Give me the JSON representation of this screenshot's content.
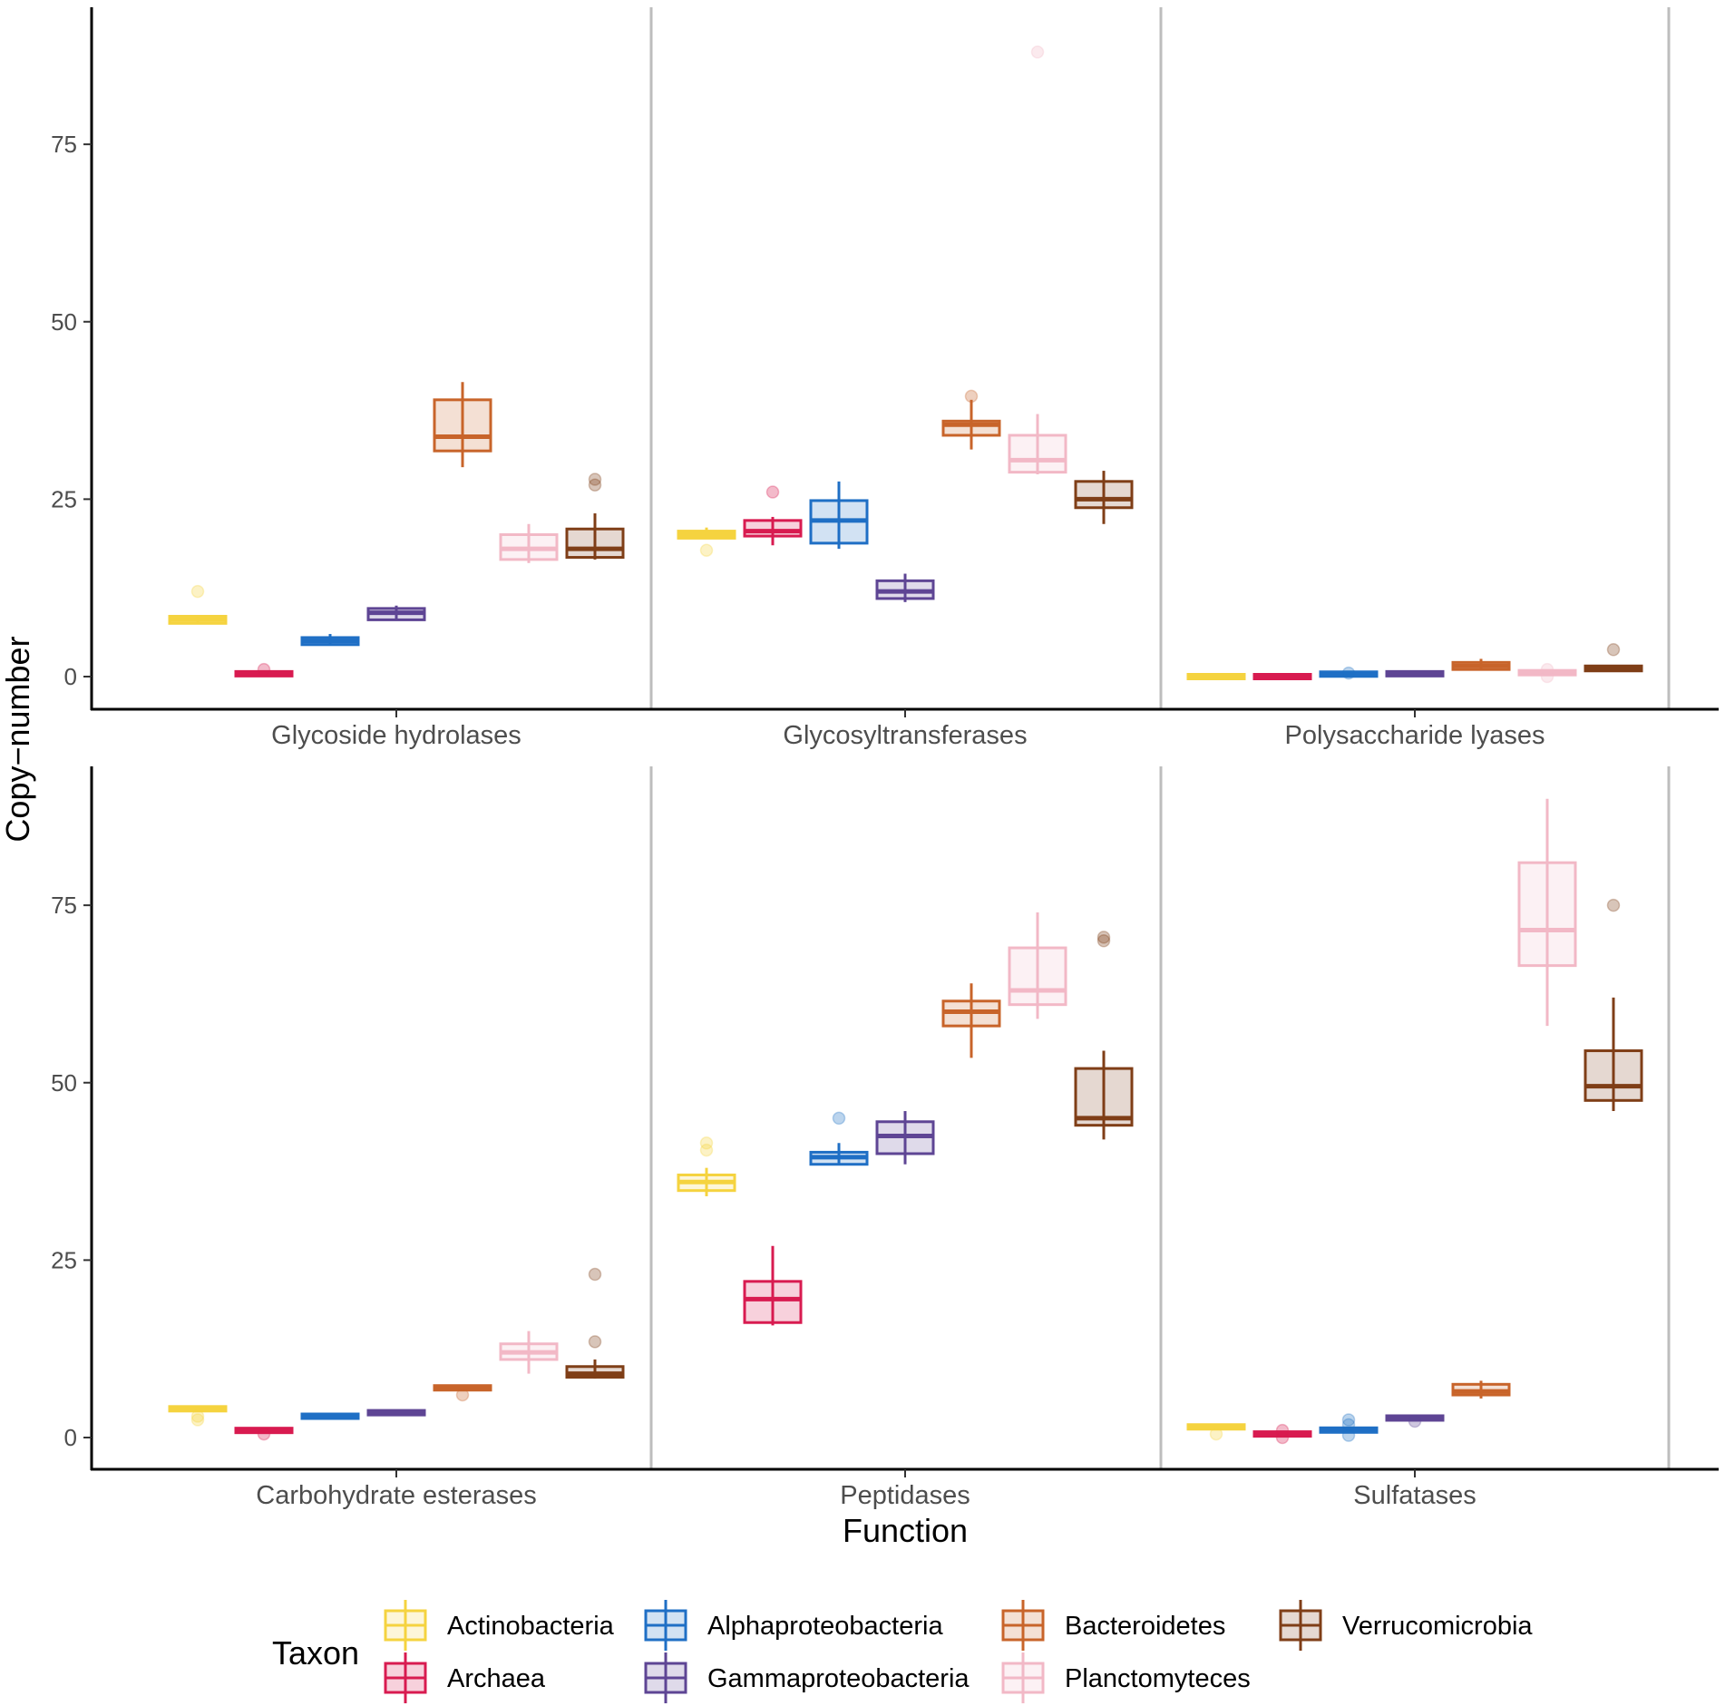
{
  "chart_data": {
    "type": "boxplot",
    "xlabel": "Function",
    "ylabel": "Copy−number",
    "ylim": [
      -5,
      95
    ],
    "yticks": [
      0,
      25,
      50,
      75
    ],
    "legend": {
      "title": "Taxon",
      "position": "bottom",
      "entries": [
        "Actinobacteria",
        "Archaea",
        "Alphaproteobacteria",
        "Gammaproteobacteria",
        "Bacteroidetes",
        "Planctomyteces",
        "Verrucomicrobia"
      ]
    },
    "colors": {
      "Actinobacteria": "#F5D33F",
      "Archaea": "#D81B50",
      "Alphaproteobacteria": "#1F6FC5",
      "Gammaproteobacteria": "#5E4594",
      "Bacteroidetes": "#C8642A",
      "Planctomyteces": "#F2B8C6",
      "Verrucomicrobia": "#7F3E17"
    },
    "taxa_order": [
      "Actinobacteria",
      "Archaea",
      "Alphaproteobacteria",
      "Gammaproteobacteria",
      "Bacteroidetes",
      "Planctomyteces",
      "Verrucomicrobia"
    ],
    "rows": [
      [
        "Glycoside hydrolases",
        "Glycosyltransferases",
        "Polysaccharide lyases"
      ],
      [
        "Carbohydrate esterases",
        "Peptidases",
        "Sulfatases"
      ]
    ],
    "panels": {
      "Glycoside hydrolases": {
        "Actinobacteria": {
          "min": 7.5,
          "q1": 7.5,
          "median": 8,
          "q3": 8.5,
          "max": 8.5,
          "outliers": [
            12
          ]
        },
        "Archaea": {
          "min": 0.2,
          "q1": 0.2,
          "median": 0.4,
          "q3": 0.6,
          "max": 0.6,
          "outliers": [
            1
          ]
        },
        "Alphaproteobacteria": {
          "min": 4.5,
          "q1": 4.5,
          "median": 5,
          "q3": 5.5,
          "max": 6,
          "outliers": []
        },
        "Gammaproteobacteria": {
          "min": 8,
          "q1": 8,
          "median": 9,
          "q3": 9.6,
          "max": 10,
          "outliers": []
        },
        "Bacteroidetes": {
          "min": 29.5,
          "q1": 31.8,
          "median": 33.8,
          "q3": 39,
          "max": 41.5,
          "outliers": []
        },
        "Planctomyteces": {
          "min": 16,
          "q1": 16.5,
          "median": 18,
          "q3": 20,
          "max": 21.5,
          "outliers": []
        },
        "Verrucomicrobia": {
          "min": 16.5,
          "q1": 16.8,
          "median": 18,
          "q3": 20.8,
          "max": 23,
          "outliers": [
            27,
            27.8
          ]
        }
      },
      "Glycosyltransferases": {
        "Actinobacteria": {
          "min": 19.5,
          "q1": 19.5,
          "median": 20,
          "q3": 20.5,
          "max": 21,
          "outliers": [
            17.8
          ]
        },
        "Archaea": {
          "min": 18.5,
          "q1": 19.8,
          "median": 20.5,
          "q3": 22,
          "max": 22.5,
          "outliers": [
            26
          ]
        },
        "Alphaproteobacteria": {
          "min": 18,
          "q1": 18.8,
          "median": 22,
          "q3": 24.8,
          "max": 27.5,
          "outliers": []
        },
        "Gammaproteobacteria": {
          "min": 10.5,
          "q1": 11,
          "median": 12,
          "q3": 13.5,
          "max": 14.5,
          "outliers": []
        },
        "Bacteroidetes": {
          "min": 32,
          "q1": 34,
          "median": 35.5,
          "q3": 36,
          "max": 39,
          "outliers": [
            39.5
          ]
        },
        "Planctomyteces": {
          "min": 28.5,
          "q1": 28.8,
          "median": 30.5,
          "q3": 34,
          "max": 37,
          "outliers": [
            88
          ]
        },
        "Verrucomicrobia": {
          "min": 21.5,
          "q1": 23.8,
          "median": 25,
          "q3": 27.5,
          "max": 29,
          "outliers": []
        }
      },
      "Polysaccharide lyases": {
        "Actinobacteria": {
          "min": 0,
          "q1": 0,
          "median": 0,
          "q3": 0,
          "max": 0,
          "outliers": []
        },
        "Archaea": {
          "min": 0,
          "q1": 0,
          "median": 0,
          "q3": 0,
          "max": 0,
          "outliers": []
        },
        "Alphaproteobacteria": {
          "min": 0.2,
          "q1": 0.2,
          "median": 0.3,
          "q3": 0.5,
          "max": 0.5,
          "outliers": [
            0.5
          ]
        },
        "Gammaproteobacteria": {
          "min": 0.3,
          "q1": 0.3,
          "median": 0.4,
          "q3": 0.5,
          "max": 0.5,
          "outliers": []
        },
        "Bacteroidetes": {
          "min": 1,
          "q1": 1,
          "median": 1.5,
          "q3": 2,
          "max": 2.5,
          "outliers": []
        },
        "Planctomyteces": {
          "min": 0.3,
          "q1": 0.3,
          "median": 0.5,
          "q3": 0.8,
          "max": 0.8,
          "outliers": [
            0,
            1
          ]
        },
        "Verrucomicrobia": {
          "min": 0.8,
          "q1": 0.8,
          "median": 1.2,
          "q3": 1.5,
          "max": 1.5,
          "outliers": [
            3.8
          ]
        }
      },
      "Carbohydrate esterases": {
        "Actinobacteria": {
          "min": 3.8,
          "q1": 3.8,
          "median": 4,
          "q3": 4.3,
          "max": 4.3,
          "outliers": [
            2.5,
            3
          ]
        },
        "Archaea": {
          "min": 0.8,
          "q1": 0.8,
          "median": 1,
          "q3": 1.2,
          "max": 1.2,
          "outliers": [
            0.5
          ]
        },
        "Alphaproteobacteria": {
          "min": 2.8,
          "q1": 2.8,
          "median": 3,
          "q3": 3.2,
          "max": 3.2,
          "outliers": []
        },
        "Gammaproteobacteria": {
          "min": 3.2,
          "q1": 3.2,
          "median": 3.5,
          "q3": 3.8,
          "max": 3.8,
          "outliers": []
        },
        "Bacteroidetes": {
          "min": 6.8,
          "q1": 6.8,
          "median": 7,
          "q3": 7.2,
          "max": 7.2,
          "outliers": [
            6
          ]
        },
        "Planctomyteces": {
          "min": 9,
          "q1": 11,
          "median": 12,
          "q3": 13.2,
          "max": 15,
          "outliers": []
        },
        "Verrucomicrobia": {
          "min": 8.3,
          "q1": 8.5,
          "median": 9,
          "q3": 10,
          "max": 11,
          "outliers": [
            13.5,
            23
          ]
        }
      },
      "Peptidases": {
        "Actinobacteria": {
          "min": 34,
          "q1": 34.8,
          "median": 36,
          "q3": 37,
          "max": 38,
          "outliers": [
            40.5,
            41.5
          ]
        },
        "Archaea": {
          "min": 15.8,
          "q1": 16.2,
          "median": 19.5,
          "q3": 22,
          "max": 27,
          "outliers": []
        },
        "Alphaproteobacteria": {
          "min": 38.5,
          "q1": 38.5,
          "median": 39.5,
          "q3": 40.2,
          "max": 41.5,
          "outliers": [
            45
          ]
        },
        "Gammaproteobacteria": {
          "min": 38.5,
          "q1": 40,
          "median": 42.5,
          "q3": 44.5,
          "max": 46,
          "outliers": []
        },
        "Bacteroidetes": {
          "min": 53.5,
          "q1": 58,
          "median": 60,
          "q3": 61.5,
          "max": 64,
          "outliers": []
        },
        "Planctomyteces": {
          "min": 59,
          "q1": 61,
          "median": 63,
          "q3": 69,
          "max": 74,
          "outliers": []
        },
        "Verrucomicrobia": {
          "min": 42,
          "q1": 44,
          "median": 45,
          "q3": 52,
          "max": 54.5,
          "outliers": [
            70,
            70.5
          ]
        }
      },
      "Sulfatases": {
        "Actinobacteria": {
          "min": 1.2,
          "q1": 1.2,
          "median": 1.5,
          "q3": 1.8,
          "max": 1.8,
          "outliers": [
            0.5
          ]
        },
        "Archaea": {
          "min": 0.3,
          "q1": 0.3,
          "median": 0.5,
          "q3": 0.7,
          "max": 0.7,
          "outliers": [
            0,
            1
          ]
        },
        "Alphaproteobacteria": {
          "min": 0.8,
          "q1": 0.8,
          "median": 1,
          "q3": 1.3,
          "max": 1.3,
          "outliers": [
            0.3,
            1.8,
            2.5
          ]
        },
        "Gammaproteobacteria": {
          "min": 2.5,
          "q1": 2.5,
          "median": 2.7,
          "q3": 3,
          "max": 3,
          "outliers": [
            2.3
          ]
        },
        "Bacteroidetes": {
          "min": 5.5,
          "q1": 6,
          "median": 6.5,
          "q3": 7.5,
          "max": 8,
          "outliers": []
        },
        "Planctomyteces": {
          "min": 58,
          "q1": 66.5,
          "median": 71.5,
          "q3": 81,
          "max": 90,
          "outliers": []
        },
        "Verrucomicrobia": {
          "min": 46,
          "q1": 47.5,
          "median": 49.5,
          "q3": 54.5,
          "max": 62,
          "outliers": [
            75
          ]
        }
      }
    }
  }
}
